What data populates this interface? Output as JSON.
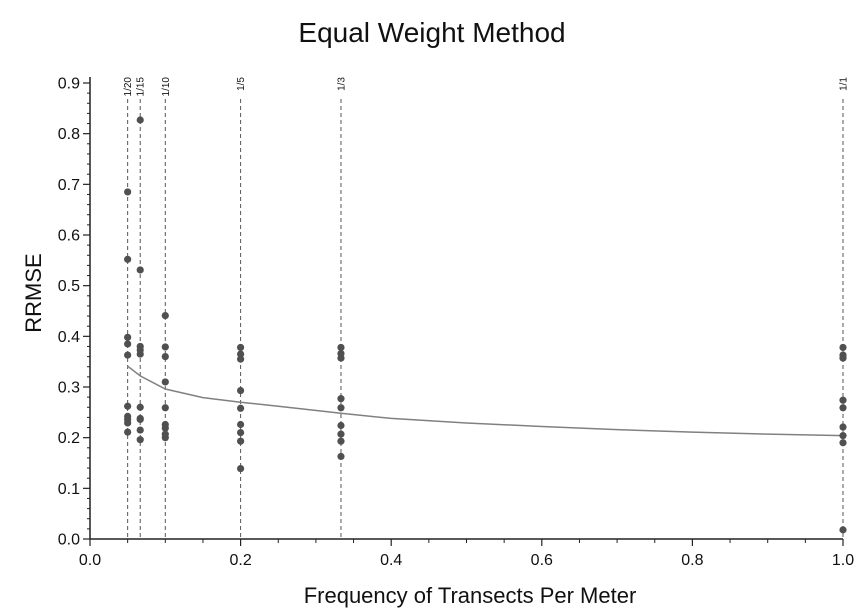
{
  "chart_data": {
    "type": "scatter",
    "title": "Equal Weight Method",
    "xlabel": "Frequency of Transects Per Meter",
    "ylabel": "RRMSE",
    "xlim": [
      0.0,
      1.0
    ],
    "ylim": [
      0.0,
      0.9
    ],
    "x_ticks": [
      "0.0",
      "0.2",
      "0.4",
      "0.6",
      "0.8",
      "1.0"
    ],
    "y_ticks": [
      "0.0",
      "0.1",
      "0.2",
      "0.3",
      "0.4",
      "0.5",
      "0.6",
      "0.7",
      "0.8",
      "0.9"
    ],
    "reference_lines": [
      {
        "x": 0.05,
        "label": "1/20"
      },
      {
        "x": 0.0667,
        "label": "1/15"
      },
      {
        "x": 0.1,
        "label": "1/10"
      },
      {
        "x": 0.2,
        "label": "1/5"
      },
      {
        "x": 0.3333,
        "label": "1/3"
      },
      {
        "x": 1.0,
        "label": "1/1"
      }
    ],
    "points": [
      {
        "x": 0.05,
        "y": 0.685
      },
      {
        "x": 0.05,
        "y": 0.552
      },
      {
        "x": 0.05,
        "y": 0.398
      },
      {
        "x": 0.05,
        "y": 0.385
      },
      {
        "x": 0.05,
        "y": 0.363
      },
      {
        "x": 0.05,
        "y": 0.262
      },
      {
        "x": 0.05,
        "y": 0.242
      },
      {
        "x": 0.05,
        "y": 0.236
      },
      {
        "x": 0.05,
        "y": 0.229
      },
      {
        "x": 0.05,
        "y": 0.211
      },
      {
        "x": 0.0667,
        "y": 0.827
      },
      {
        "x": 0.0667,
        "y": 0.531
      },
      {
        "x": 0.0667,
        "y": 0.38
      },
      {
        "x": 0.0667,
        "y": 0.373
      },
      {
        "x": 0.0667,
        "y": 0.365
      },
      {
        "x": 0.0667,
        "y": 0.26
      },
      {
        "x": 0.0667,
        "y": 0.238
      },
      {
        "x": 0.0667,
        "y": 0.236
      },
      {
        "x": 0.0667,
        "y": 0.215
      },
      {
        "x": 0.0667,
        "y": 0.196
      },
      {
        "x": 0.1,
        "y": 0.441
      },
      {
        "x": 0.1,
        "y": 0.379
      },
      {
        "x": 0.1,
        "y": 0.36
      },
      {
        "x": 0.1,
        "y": 0.31
      },
      {
        "x": 0.1,
        "y": 0.259
      },
      {
        "x": 0.1,
        "y": 0.226
      },
      {
        "x": 0.1,
        "y": 0.219
      },
      {
        "x": 0.1,
        "y": 0.207
      },
      {
        "x": 0.1,
        "y": 0.2
      },
      {
        "x": 0.2,
        "y": 0.378
      },
      {
        "x": 0.2,
        "y": 0.365
      },
      {
        "x": 0.2,
        "y": 0.355
      },
      {
        "x": 0.2,
        "y": 0.293
      },
      {
        "x": 0.2,
        "y": 0.258
      },
      {
        "x": 0.2,
        "y": 0.226
      },
      {
        "x": 0.2,
        "y": 0.21
      },
      {
        "x": 0.2,
        "y": 0.193
      },
      {
        "x": 0.2,
        "y": 0.139
      },
      {
        "x": 0.3333,
        "y": 0.378
      },
      {
        "x": 0.3333,
        "y": 0.366
      },
      {
        "x": 0.3333,
        "y": 0.357
      },
      {
        "x": 0.3333,
        "y": 0.277
      },
      {
        "x": 0.3333,
        "y": 0.259
      },
      {
        "x": 0.3333,
        "y": 0.224
      },
      {
        "x": 0.3333,
        "y": 0.207
      },
      {
        "x": 0.3333,
        "y": 0.193
      },
      {
        "x": 0.3333,
        "y": 0.163
      },
      {
        "x": 1.0,
        "y": 0.378
      },
      {
        "x": 1.0,
        "y": 0.363
      },
      {
        "x": 1.0,
        "y": 0.357
      },
      {
        "x": 1.0,
        "y": 0.274
      },
      {
        "x": 1.0,
        "y": 0.259
      },
      {
        "x": 1.0,
        "y": 0.221
      },
      {
        "x": 1.0,
        "y": 0.204
      },
      {
        "x": 1.0,
        "y": 0.19
      },
      {
        "x": 1.0,
        "y": 0.018
      }
    ],
    "fit_curve": {
      "x": [
        0.05,
        0.0667,
        0.1,
        0.15,
        0.2,
        0.25,
        0.3333,
        0.4,
        0.5,
        0.6,
        0.7,
        0.8,
        0.9,
        1.0
      ],
      "y": [
        0.341,
        0.322,
        0.296,
        0.279,
        0.27,
        0.262,
        0.248,
        0.238,
        0.229,
        0.222,
        0.216,
        0.211,
        0.207,
        0.204
      ]
    },
    "grid": false,
    "legend": "none",
    "colors": {
      "point": "#505050",
      "curve": "#808080",
      "ref_line": "#555555",
      "axis": "#222222"
    }
  }
}
